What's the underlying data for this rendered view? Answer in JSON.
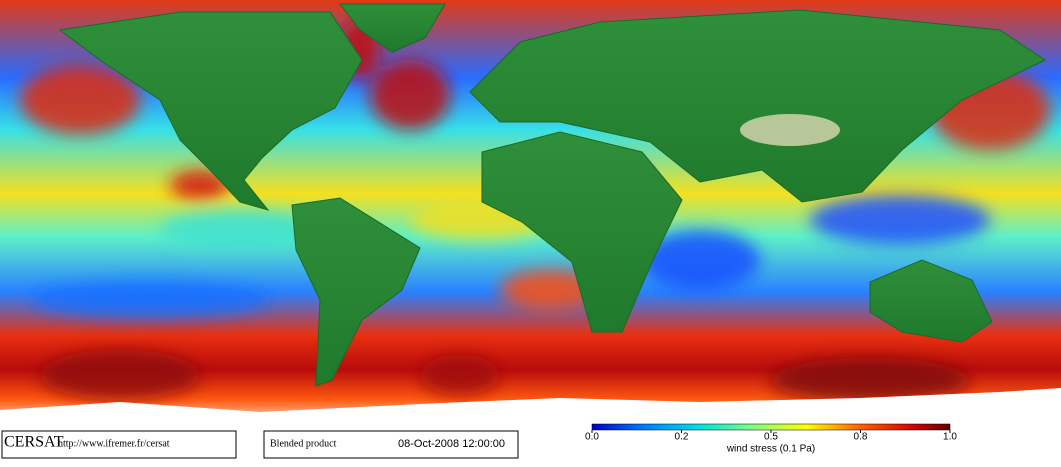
{
  "branding": {
    "logo": "CERSAT",
    "url": "http://www.ifremer.fr/cersat"
  },
  "product": {
    "name": "Blended product",
    "timestamp": "08-Oct-2008 12:00:00"
  },
  "colorbar": {
    "label": "wind stress (0.1 Pa)",
    "ticks": [
      {
        "value": 0,
        "label": "0.0"
      },
      0.2,
      0.5,
      0.8,
      {
        "value": 1,
        "label": "1.0"
      }
    ]
  }
}
